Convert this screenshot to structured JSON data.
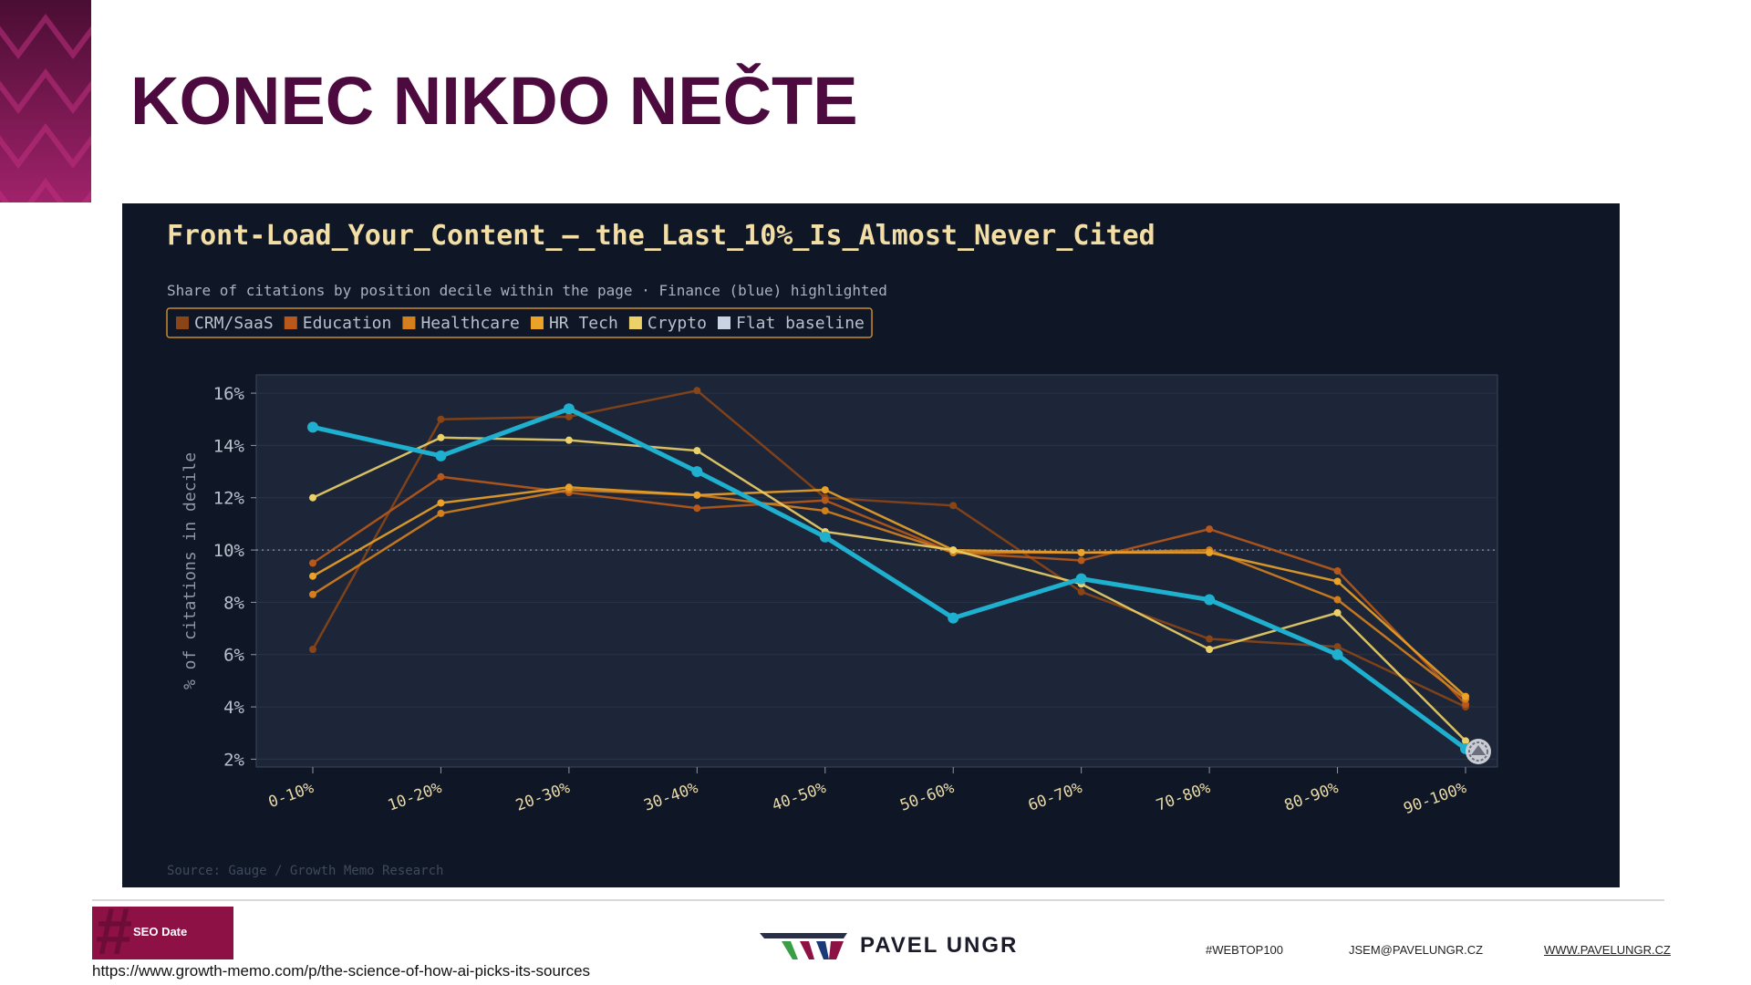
{
  "slide": {
    "title": "KONEC NIKDO NEČTE",
    "source_url": "https://www.growth-memo.com/p/the-science-of-how-ai-picks-its-sources"
  },
  "footer": {
    "badge_label": "SEO Date",
    "badge_hash": "#",
    "brand_name": "PAVEL UNGR",
    "hashtag": "#WEBTOP100",
    "email": "JSEM@PAVELUNGR.CZ",
    "website": "WWW.PAVELUNGR.CZ"
  },
  "chart_data": {
    "type": "line",
    "title": "Front-Load_Your_Content_–_the_Last_10%_Is_Almost_Never_Cited",
    "subtitle": "Share of citations by position decile within the page · Finance (blue) highlighted",
    "ylabel": "% of citations in decile",
    "source": "Source: Gauge / Growth Memo Research",
    "categories": [
      "0-10%",
      "10-20%",
      "20-30%",
      "30-40%",
      "40-50%",
      "50-60%",
      "60-70%",
      "70-80%",
      "80-90%",
      "90-100%"
    ],
    "ylim": [
      1.7,
      16.7
    ],
    "yticks": [
      2,
      4,
      6,
      8,
      10,
      12,
      14,
      16
    ],
    "ytick_labels": [
      "2%",
      "4%",
      "6%",
      "8%",
      "10%",
      "12%",
      "14%",
      "16%"
    ],
    "baseline": 10,
    "grid": true,
    "legend_position": "top-left",
    "legend": [
      {
        "label": "CRM/SaaS",
        "color": "#8a4517"
      },
      {
        "label": "Education",
        "color": "#b8581a"
      },
      {
        "label": "Healthcare",
        "color": "#d47f1e"
      },
      {
        "label": "HR Tech",
        "color": "#eba229"
      },
      {
        "label": "Crypto",
        "color": "#ecd068"
      },
      {
        "label": "Flat baseline",
        "color": "#c9d3e3"
      }
    ],
    "series": [
      {
        "name": "CRM/SaaS",
        "color": "#8a4517",
        "values": [
          6.2,
          15.0,
          15.1,
          16.1,
          12.0,
          11.7,
          8.4,
          6.6,
          6.3,
          4.0
        ]
      },
      {
        "name": "Education",
        "color": "#b8581a",
        "values": [
          9.5,
          12.8,
          12.2,
          11.6,
          11.9,
          9.9,
          9.6,
          10.8,
          9.2,
          4.1
        ]
      },
      {
        "name": "Healthcare",
        "color": "#d47f1e",
        "values": [
          8.3,
          11.4,
          12.3,
          12.1,
          11.5,
          9.9,
          9.9,
          10.0,
          8.1,
          4.3
        ]
      },
      {
        "name": "HR Tech",
        "color": "#eba229",
        "values": [
          9.0,
          11.8,
          12.4,
          12.1,
          12.3,
          10.0,
          9.9,
          9.9,
          8.8,
          4.4
        ]
      },
      {
        "name": "Crypto",
        "color": "#ecd068",
        "values": [
          12.0,
          14.3,
          14.2,
          13.8,
          10.7,
          10.0,
          8.7,
          6.2,
          7.6,
          2.7
        ]
      },
      {
        "name": "Finance",
        "color": "#1fb0cf",
        "values": [
          14.7,
          13.6,
          15.4,
          13.0,
          10.5,
          7.4,
          8.9,
          8.1,
          6.0,
          2.4
        ]
      }
    ]
  }
}
